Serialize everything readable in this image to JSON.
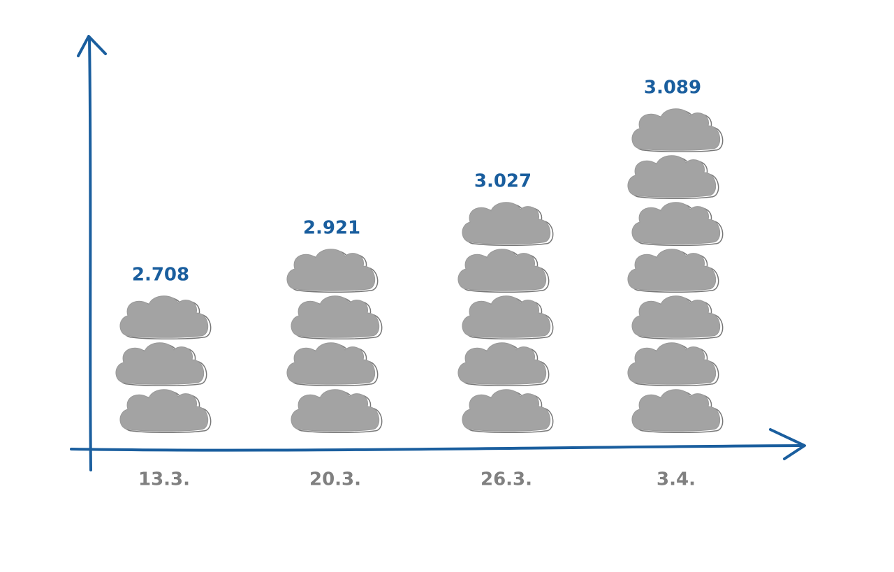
{
  "chart_data": {
    "type": "pictogram",
    "categories": [
      "13.3.",
      "20.3.",
      "26.3.",
      "3.4."
    ],
    "values": [
      2708,
      2921,
      3027,
      3089
    ],
    "value_labels": [
      "2.708",
      "2.921",
      "3.027",
      "3.089"
    ],
    "icon_counts": [
      3,
      4,
      5,
      7
    ],
    "color": "#a3a3a3",
    "label_color": "#1a5e9e"
  }
}
